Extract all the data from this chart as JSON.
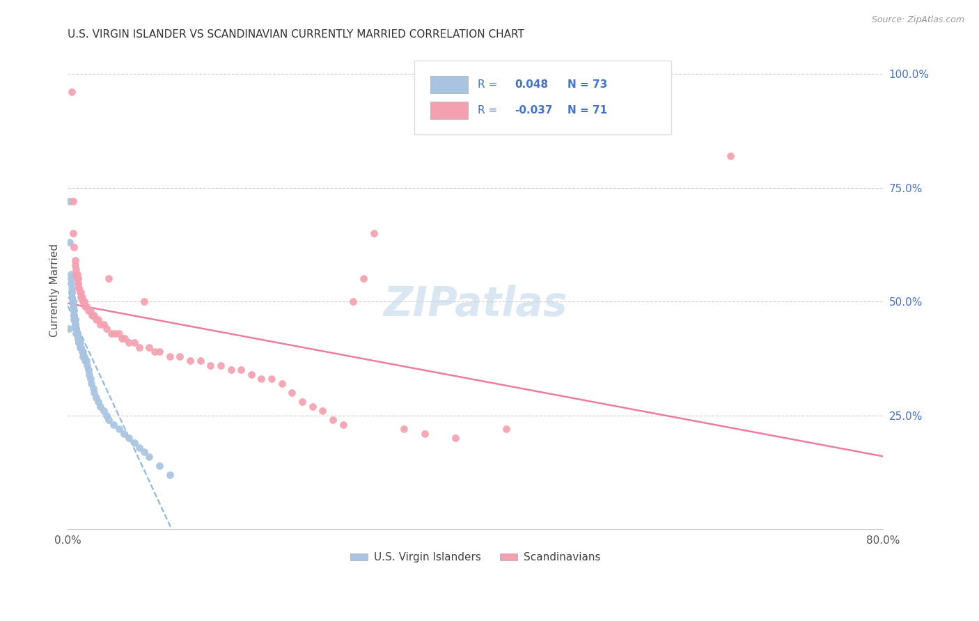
{
  "title": "U.S. VIRGIN ISLANDER VS SCANDINAVIAN CURRENTLY MARRIED CORRELATION CHART",
  "source": "Source: ZipAtlas.com",
  "ylabel": "Currently Married",
  "right_yticks": [
    "100.0%",
    "75.0%",
    "50.0%",
    "25.0%"
  ],
  "right_ytick_vals": [
    1.0,
    0.75,
    0.5,
    0.25
  ],
  "legend_blue_label": "U.S. Virgin Islanders",
  "legend_pink_label": "Scandinavians",
  "R_blue": 0.048,
  "N_blue": 73,
  "R_pink": -0.037,
  "N_pink": 71,
  "blue_color": "#a8c4e0",
  "pink_color": "#f4a0b0",
  "trend_blue_color": "#7aaed6",
  "trend_pink_color": "#e87090",
  "watermark": "ZIPatlas",
  "blue_scatter_x": [
    0.001,
    0.002,
    0.002,
    0.003,
    0.003,
    0.003,
    0.004,
    0.004,
    0.004,
    0.004,
    0.004,
    0.005,
    0.005,
    0.005,
    0.005,
    0.005,
    0.005,
    0.006,
    0.006,
    0.006,
    0.006,
    0.006,
    0.006,
    0.007,
    0.007,
    0.007,
    0.007,
    0.007,
    0.008,
    0.008,
    0.008,
    0.008,
    0.009,
    0.009,
    0.009,
    0.01,
    0.01,
    0.01,
    0.011,
    0.011,
    0.012,
    0.012,
    0.013,
    0.013,
    0.014,
    0.015,
    0.015,
    0.016,
    0.017,
    0.018,
    0.019,
    0.02,
    0.021,
    0.022,
    0.023,
    0.025,
    0.026,
    0.028,
    0.03,
    0.032,
    0.035,
    0.038,
    0.04,
    0.045,
    0.05,
    0.055,
    0.06,
    0.065,
    0.07,
    0.075,
    0.08,
    0.09,
    0.1
  ],
  "blue_scatter_y": [
    0.44,
    0.72,
    0.63,
    0.56,
    0.55,
    0.54,
    0.53,
    0.52,
    0.52,
    0.51,
    0.51,
    0.5,
    0.5,
    0.5,
    0.5,
    0.49,
    0.49,
    0.48,
    0.48,
    0.48,
    0.47,
    0.47,
    0.46,
    0.46,
    0.46,
    0.45,
    0.45,
    0.45,
    0.44,
    0.44,
    0.44,
    0.43,
    0.43,
    0.43,
    0.43,
    0.42,
    0.42,
    0.42,
    0.41,
    0.41,
    0.41,
    0.4,
    0.4,
    0.4,
    0.39,
    0.39,
    0.38,
    0.38,
    0.37,
    0.37,
    0.36,
    0.35,
    0.34,
    0.33,
    0.32,
    0.31,
    0.3,
    0.29,
    0.28,
    0.27,
    0.26,
    0.25,
    0.24,
    0.23,
    0.22,
    0.21,
    0.2,
    0.19,
    0.18,
    0.17,
    0.16,
    0.14,
    0.12
  ],
  "pink_scatter_x": [
    0.004,
    0.005,
    0.005,
    0.006,
    0.007,
    0.007,
    0.008,
    0.008,
    0.009,
    0.009,
    0.01,
    0.01,
    0.01,
    0.011,
    0.011,
    0.012,
    0.013,
    0.013,
    0.014,
    0.015,
    0.016,
    0.017,
    0.018,
    0.02,
    0.022,
    0.024,
    0.026,
    0.028,
    0.03,
    0.032,
    0.035,
    0.038,
    0.04,
    0.043,
    0.046,
    0.05,
    0.053,
    0.056,
    0.06,
    0.065,
    0.07,
    0.075,
    0.08,
    0.085,
    0.09,
    0.1,
    0.11,
    0.12,
    0.13,
    0.14,
    0.15,
    0.16,
    0.17,
    0.18,
    0.19,
    0.2,
    0.21,
    0.22,
    0.23,
    0.24,
    0.25,
    0.26,
    0.27,
    0.28,
    0.29,
    0.3,
    0.33,
    0.35,
    0.38,
    0.43,
    0.65
  ],
  "pink_scatter_y": [
    0.96,
    0.72,
    0.65,
    0.62,
    0.59,
    0.58,
    0.57,
    0.56,
    0.56,
    0.55,
    0.55,
    0.54,
    0.54,
    0.53,
    0.53,
    0.52,
    0.52,
    0.51,
    0.51,
    0.5,
    0.5,
    0.49,
    0.49,
    0.48,
    0.48,
    0.47,
    0.47,
    0.46,
    0.46,
    0.45,
    0.45,
    0.44,
    0.55,
    0.43,
    0.43,
    0.43,
    0.42,
    0.42,
    0.41,
    0.41,
    0.4,
    0.5,
    0.4,
    0.39,
    0.39,
    0.38,
    0.38,
    0.37,
    0.37,
    0.36,
    0.36,
    0.35,
    0.35,
    0.34,
    0.33,
    0.33,
    0.32,
    0.3,
    0.28,
    0.27,
    0.26,
    0.24,
    0.23,
    0.5,
    0.55,
    0.65,
    0.22,
    0.21,
    0.2,
    0.22,
    0.82
  ]
}
